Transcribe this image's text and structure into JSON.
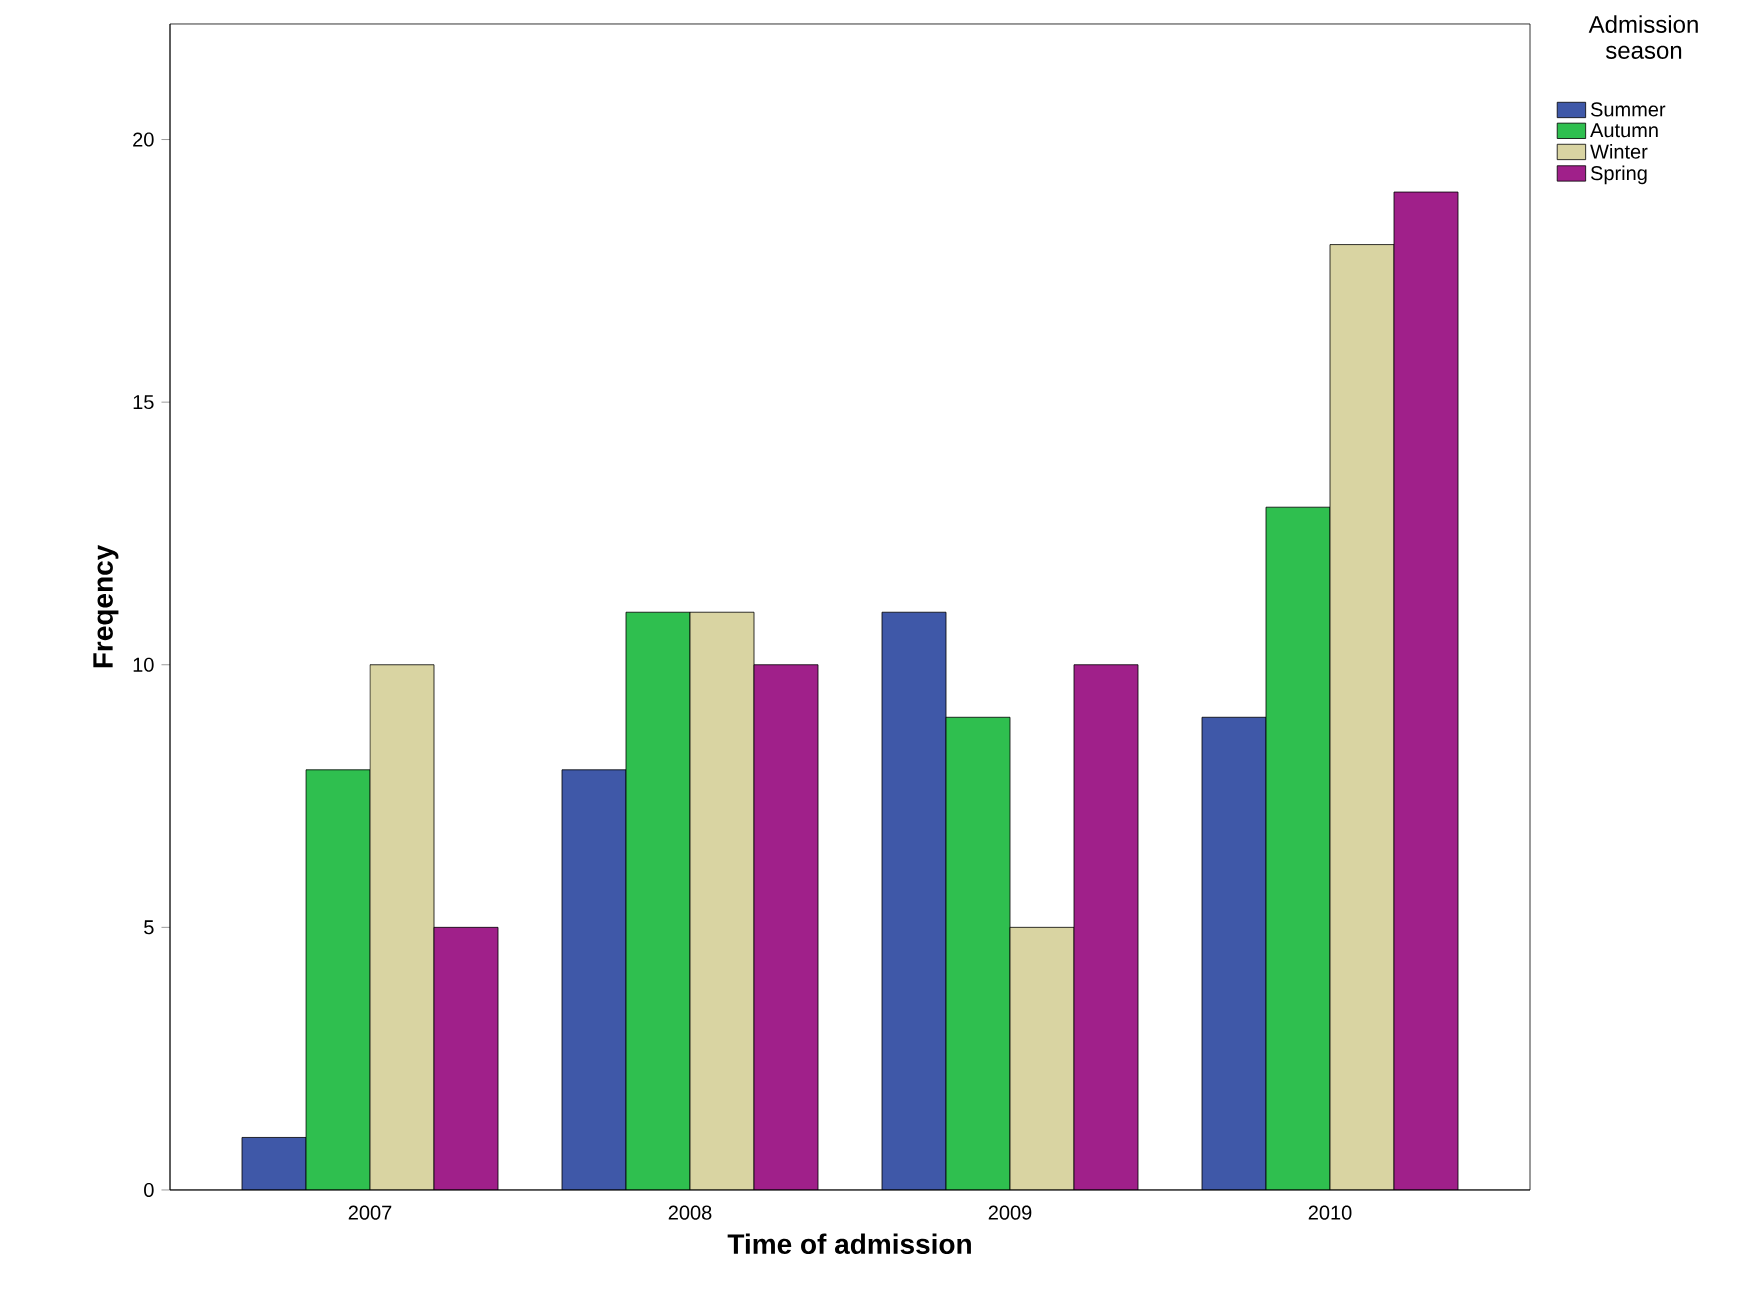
{
  "chart_data": {
    "type": "bar",
    "xlabel": "Time of admission",
    "ylabel": "Freqency",
    "legend_title": "Admission season",
    "legend": "top right",
    "categories": [
      "2007",
      "2008",
      "2009",
      "2010"
    ],
    "series": [
      {
        "name": "Summer",
        "color": "#3f58a8",
        "values": [
          1,
          8,
          11,
          9
        ]
      },
      {
        "name": "Autumn",
        "color": "#2fbf4f",
        "values": [
          8,
          11,
          9,
          13
        ]
      },
      {
        "name": "Winter",
        "color": "#d9d4a2",
        "values": [
          10,
          11,
          5,
          18
        ]
      },
      {
        "name": "Spring",
        "color": "#a0208a",
        "values": [
          5,
          10,
          10,
          19
        ]
      }
    ],
    "ylim": [
      0,
      22.2
    ],
    "yticks": [
      0,
      5,
      10,
      15,
      20
    ],
    "grid": false
  }
}
